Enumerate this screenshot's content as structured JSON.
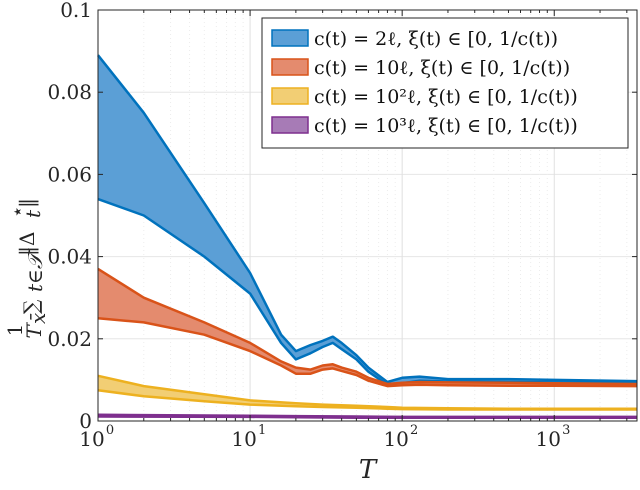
{
  "chart_data": {
    "type": "area",
    "xlabel": "T",
    "ylabel": "1/T_x̄ Σ_{t∈T} ‖Δ*_t‖",
    "ylabel_parts": {
      "frac_num": "1",
      "frac_den": "T",
      "frac_den_sub": "x̄",
      "sum": "∑",
      "sum_sub": "t∈𝒯",
      "norm_open": "‖Δ",
      "star": "⋆",
      "sub_t": "t",
      "norm_close": "‖"
    },
    "x_scale": "log",
    "xlim": [
      1,
      3500
    ],
    "ylim": [
      0,
      0.1
    ],
    "x_ticks": [
      {
        "base": "10",
        "exp": "0"
      },
      {
        "base": "10",
        "exp": "1"
      },
      {
        "base": "10",
        "exp": "2"
      },
      {
        "base": "10",
        "exp": "3"
      }
    ],
    "y_ticks": [
      "0",
      "0.02",
      "0.04",
      "0.06",
      "0.08",
      "0.1"
    ],
    "y_tick_values": [
      0,
      0.02,
      0.04,
      0.06,
      0.08,
      0.1
    ],
    "grid": true,
    "legend_position": "top-right",
    "series": [
      {
        "name": "c(t) = 2ℓ, ξ(t) ∈ [0, 1/c(t))",
        "color": "#0072BD",
        "fill": "#5B9FD6",
        "x": [
          1,
          2,
          5,
          10,
          16,
          20,
          25,
          30,
          35,
          40,
          50,
          60,
          80,
          100,
          130,
          200,
          500,
          1000,
          3500
        ],
        "upper": [
          0.089,
          0.075,
          0.053,
          0.036,
          0.021,
          0.017,
          0.0185,
          0.0195,
          0.0205,
          0.019,
          0.016,
          0.013,
          0.0095,
          0.0105,
          0.0108,
          0.0102,
          0.0102,
          0.01,
          0.0097
        ],
        "lower": [
          0.054,
          0.05,
          0.04,
          0.031,
          0.019,
          0.015,
          0.0165,
          0.018,
          0.019,
          0.0175,
          0.015,
          0.012,
          0.0088,
          0.0092,
          0.0098,
          0.0096,
          0.0095,
          0.0094,
          0.0093
        ]
      },
      {
        "name": "c(t) = 10ℓ, ξ(t) ∈ [0, 1/c(t))",
        "color": "#D95319",
        "fill": "#E48B6E",
        "x": [
          1,
          2,
          5,
          10,
          16,
          20,
          25,
          30,
          35,
          40,
          50,
          60,
          80,
          100,
          130,
          200,
          500,
          1000,
          3500
        ],
        "upper": [
          0.037,
          0.03,
          0.024,
          0.019,
          0.0145,
          0.013,
          0.0125,
          0.0135,
          0.0138,
          0.013,
          0.012,
          0.0105,
          0.009,
          0.0093,
          0.0095,
          0.0094,
          0.0093,
          0.0092,
          0.009
        ],
        "lower": [
          0.025,
          0.024,
          0.021,
          0.017,
          0.0135,
          0.0115,
          0.0115,
          0.0125,
          0.0128,
          0.0122,
          0.0112,
          0.0098,
          0.0085,
          0.0087,
          0.0088,
          0.0087,
          0.0086,
          0.0086,
          0.0085
        ]
      },
      {
        "name": "c(t) = 10²ℓ, ξ(t) ∈ [0, 1/c(t))",
        "color": "#EDB120",
        "fill": "#F2CE74",
        "x": [
          1,
          2,
          5,
          10,
          20,
          30,
          50,
          80,
          100,
          200,
          500,
          1000,
          3500
        ],
        "upper": [
          0.011,
          0.0085,
          0.0065,
          0.005,
          0.0043,
          0.004,
          0.0037,
          0.0034,
          0.0032,
          0.0031,
          0.003,
          0.003,
          0.003
        ],
        "lower": [
          0.0075,
          0.006,
          0.0048,
          0.004,
          0.0036,
          0.0034,
          0.0032,
          0.003,
          0.0029,
          0.0028,
          0.0028,
          0.0028,
          0.0028
        ]
      },
      {
        "name": "c(t) = 10³ℓ, ξ(t) ∈ [0, 1/c(t))",
        "color": "#7E2F8E",
        "fill": "#A77BB6",
        "x": [
          1,
          10,
          20,
          50,
          100,
          1000,
          3500
        ],
        "upper": [
          0.0015,
          0.0013,
          0.0012,
          0.0011,
          0.001,
          0.001,
          0.001
        ],
        "lower": [
          0.0011,
          0.001,
          0.0009,
          0.0008,
          0.0008,
          0.0008,
          0.0008
        ]
      }
    ]
  }
}
